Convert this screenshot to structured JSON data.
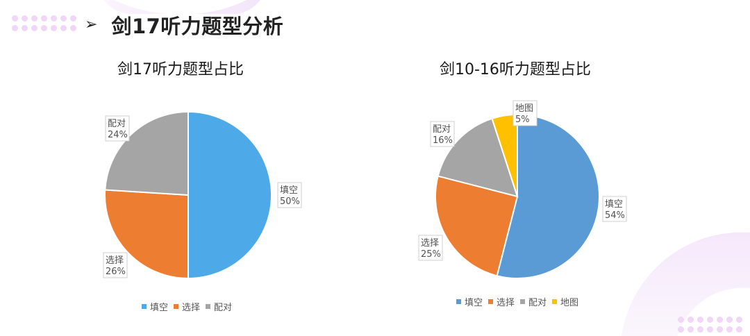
{
  "header": {
    "arrow": "➢",
    "title": "剑17听力题型分析"
  },
  "chart_data": [
    {
      "type": "pie",
      "title": "剑17听力题型占比",
      "categories": [
        "填空",
        "选择",
        "配对"
      ],
      "values": [
        50,
        26,
        24
      ],
      "colors": [
        "#4da9e8",
        "#ed7d31",
        "#a5a5a5"
      ],
      "labels": [
        {
          "name": "填空",
          "pct": "50%"
        },
        {
          "name": "选择",
          "pct": "26%"
        },
        {
          "name": "配对",
          "pct": "24%"
        }
      ],
      "legend": [
        {
          "label": "填空",
          "color": "#4da9e8"
        },
        {
          "label": "选择",
          "color": "#ed7d31"
        },
        {
          "label": "配对",
          "color": "#a5a5a5"
        }
      ],
      "legend_position": "bottom",
      "start_angle": "12 o'clock, clockwise"
    },
    {
      "type": "pie",
      "title": "剑10-16听力题型占比",
      "categories": [
        "填空",
        "选择",
        "配对",
        "地图"
      ],
      "values": [
        54,
        25,
        16,
        5
      ],
      "colors": [
        "#5b9bd5",
        "#ed7d31",
        "#a5a5a5",
        "#ffc000"
      ],
      "labels": [
        {
          "name": "填空",
          "pct": "54%"
        },
        {
          "name": "选择",
          "pct": "25%"
        },
        {
          "name": "配对",
          "pct": "16%"
        },
        {
          "name": "地图",
          "pct": "5%"
        }
      ],
      "legend": [
        {
          "label": "填空",
          "color": "#5b9bd5"
        },
        {
          "label": "选择",
          "color": "#ed7d31"
        },
        {
          "label": "配对",
          "color": "#a5a5a5"
        },
        {
          "label": "地图",
          "color": "#ffc000"
        }
      ],
      "legend_position": "bottom",
      "start_angle": "12 o'clock, clockwise"
    }
  ]
}
